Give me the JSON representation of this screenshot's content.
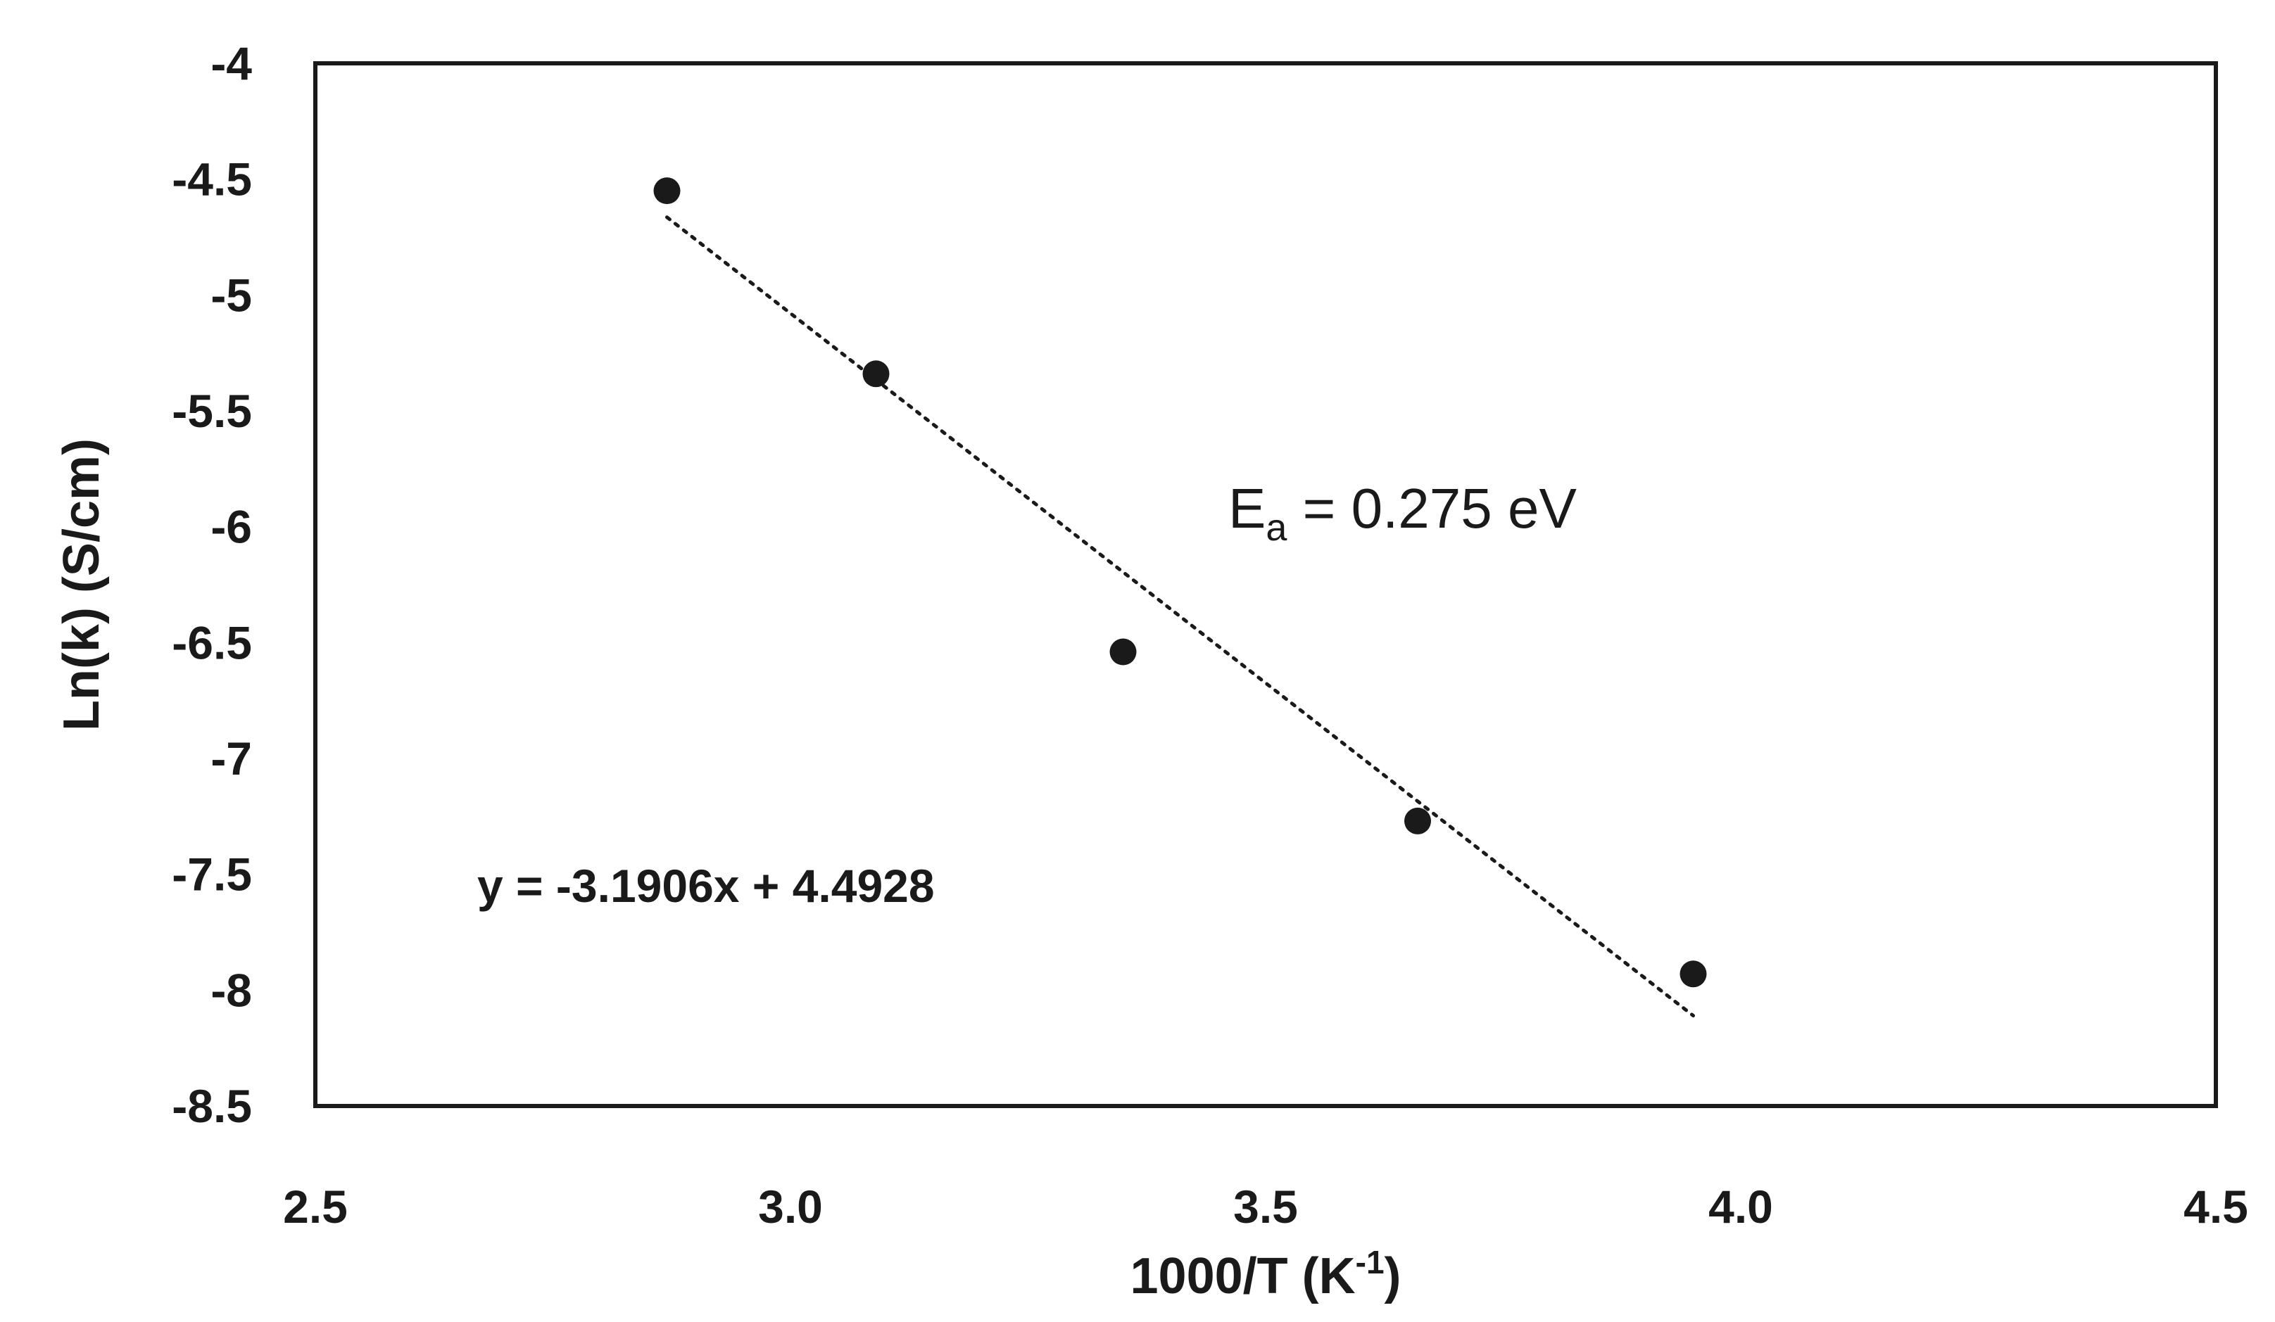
{
  "chart_data": {
    "type": "scatter",
    "xlabel_main": "1000/T (K",
    "xlabel_sup": "-1",
    "xlabel_end": ")",
    "ylabel": "Ln(k) (S/cm)",
    "xlim": [
      2.5,
      4.5
    ],
    "ylim": [
      -8.5,
      -4
    ],
    "x_ticks": [
      2.5,
      3.0,
      3.5,
      4.0,
      4.5
    ],
    "x_tick_labels": [
      "2.5",
      "3.0",
      "3.5",
      "4.0",
      "4.5"
    ],
    "y_ticks": [
      -4,
      -4.5,
      -5,
      -5.5,
      -6,
      -6.5,
      -7,
      -7.5,
      -8,
      -8.5
    ],
    "y_tick_labels": [
      "-4",
      "-4.5",
      "-5",
      "-5.5",
      "-6",
      "-6.5",
      "-7",
      "-7.5",
      "-8",
      "-8.5"
    ],
    "points": [
      {
        "x": 2.87,
        "y": -4.55
      },
      {
        "x": 3.09,
        "y": -5.34
      },
      {
        "x": 3.35,
        "y": -6.54
      },
      {
        "x": 3.66,
        "y": -7.27
      },
      {
        "x": 3.95,
        "y": -7.93
      }
    ],
    "trendline": {
      "x_start": 2.87,
      "x_end": 3.95,
      "slope": -3.1906,
      "intercept": 4.4928,
      "style": "dotted"
    },
    "equation_text": "y = -3.1906x + 4.4928",
    "ea_main": "E",
    "ea_sub": "a",
    "ea_value": " = 0.275 eV",
    "grid": false,
    "marker_color": "#1a1a1a"
  }
}
